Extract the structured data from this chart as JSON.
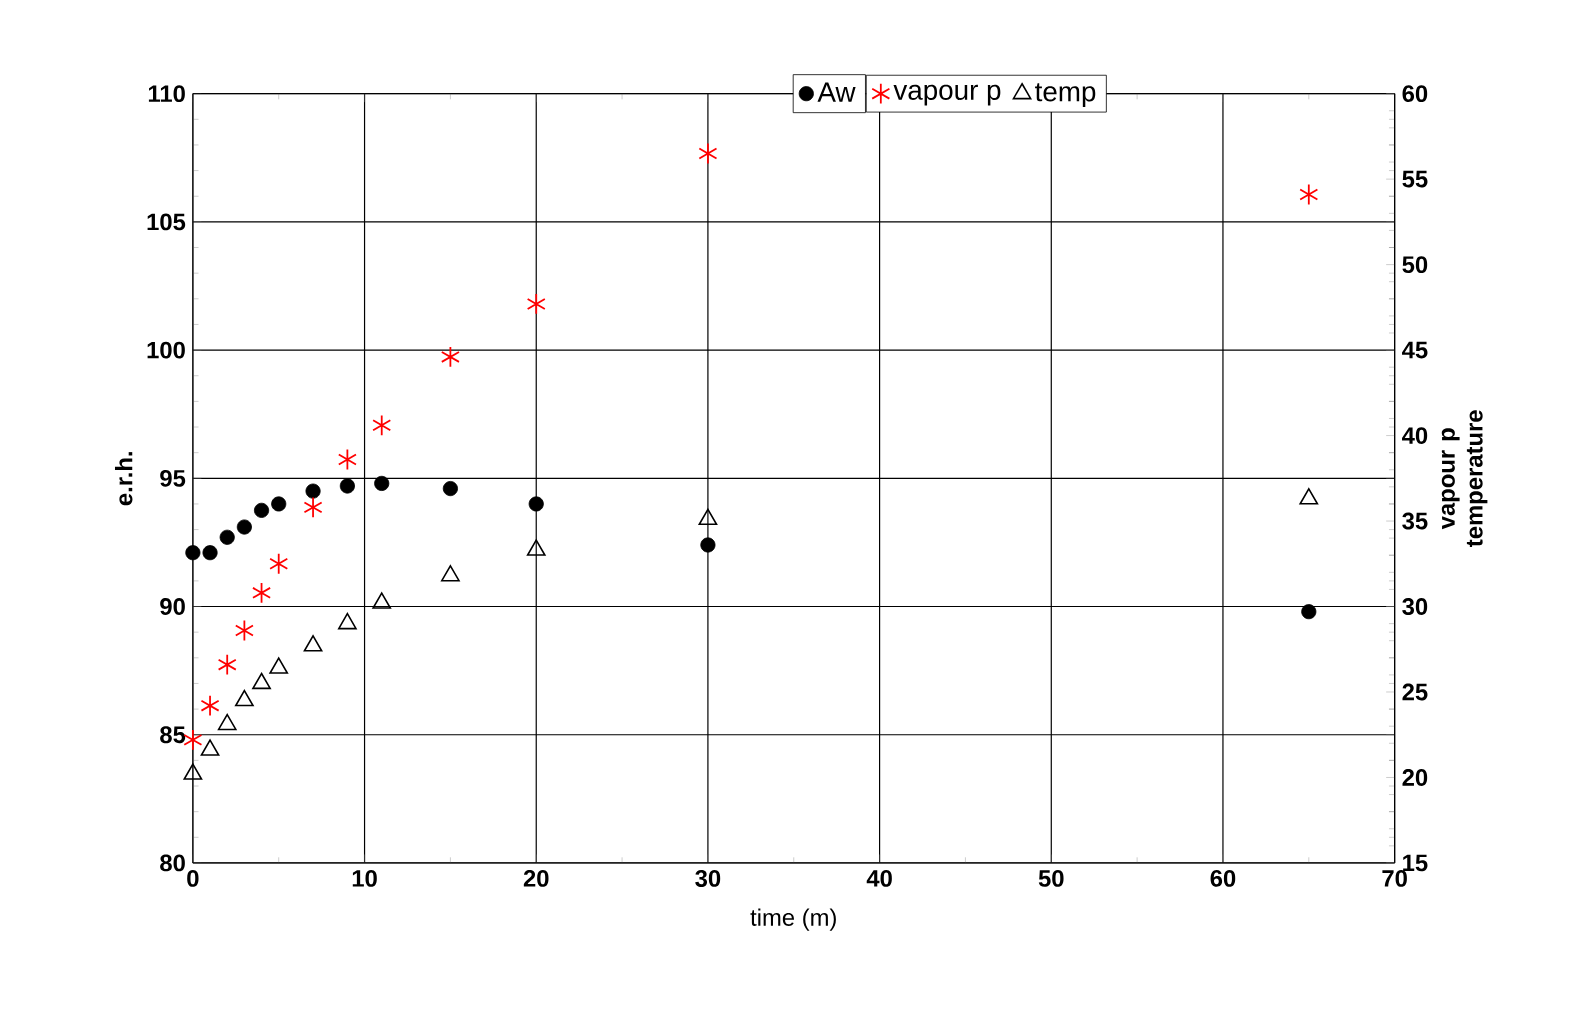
{
  "chart_data": {
    "type": "scatter",
    "xlabel": "time (m)",
    "ylabel": "e.r.h.",
    "y2label": "vapour p temperature",
    "xlim": [
      0,
      70
    ],
    "xticks": [
      0,
      10,
      20,
      30,
      40,
      50,
      60,
      70
    ],
    "ylim": [
      80,
      110
    ],
    "yticks": [
      80,
      85,
      90,
      95,
      100,
      105,
      110
    ],
    "y2lim": [
      15,
      60
    ],
    "y2ticks": [
      15,
      20,
      25,
      30,
      35,
      40,
      45,
      50,
      55,
      60
    ],
    "grid": true,
    "legend": "top",
    "x": [
      0,
      1,
      2,
      3,
      4,
      5,
      7,
      9,
      11,
      15,
      20,
      30,
      65
    ],
    "series": [
      {
        "name": "Aw",
        "color": "#000000",
        "marker": "circle",
        "values": [
          92.1,
          92.1,
          92.7,
          93.1,
          93.75,
          94.0,
          94.5,
          94.7,
          94.8,
          94.6,
          94.0,
          92.4,
          89.8
        ]
      },
      {
        "name": "vapour p",
        "color": "#ff0000",
        "marker": "cross",
        "axis": "y2",
        "values": [
          22.2,
          24.2,
          26.6,
          28.6,
          30.8,
          32.5,
          35.8,
          38.6,
          40.6,
          44.6,
          47.7,
          56.5,
          54.1
        ]
      },
      {
        "name": "temp",
        "color": "#000000",
        "marker": "triangle",
        "axis": "y2",
        "values": [
          20.2,
          21.6,
          23.1,
          24.5,
          25.5,
          26.4,
          27.7,
          29.0,
          30.2,
          31.8,
          33.3,
          35.1,
          36.3
        ]
      }
    ]
  }
}
